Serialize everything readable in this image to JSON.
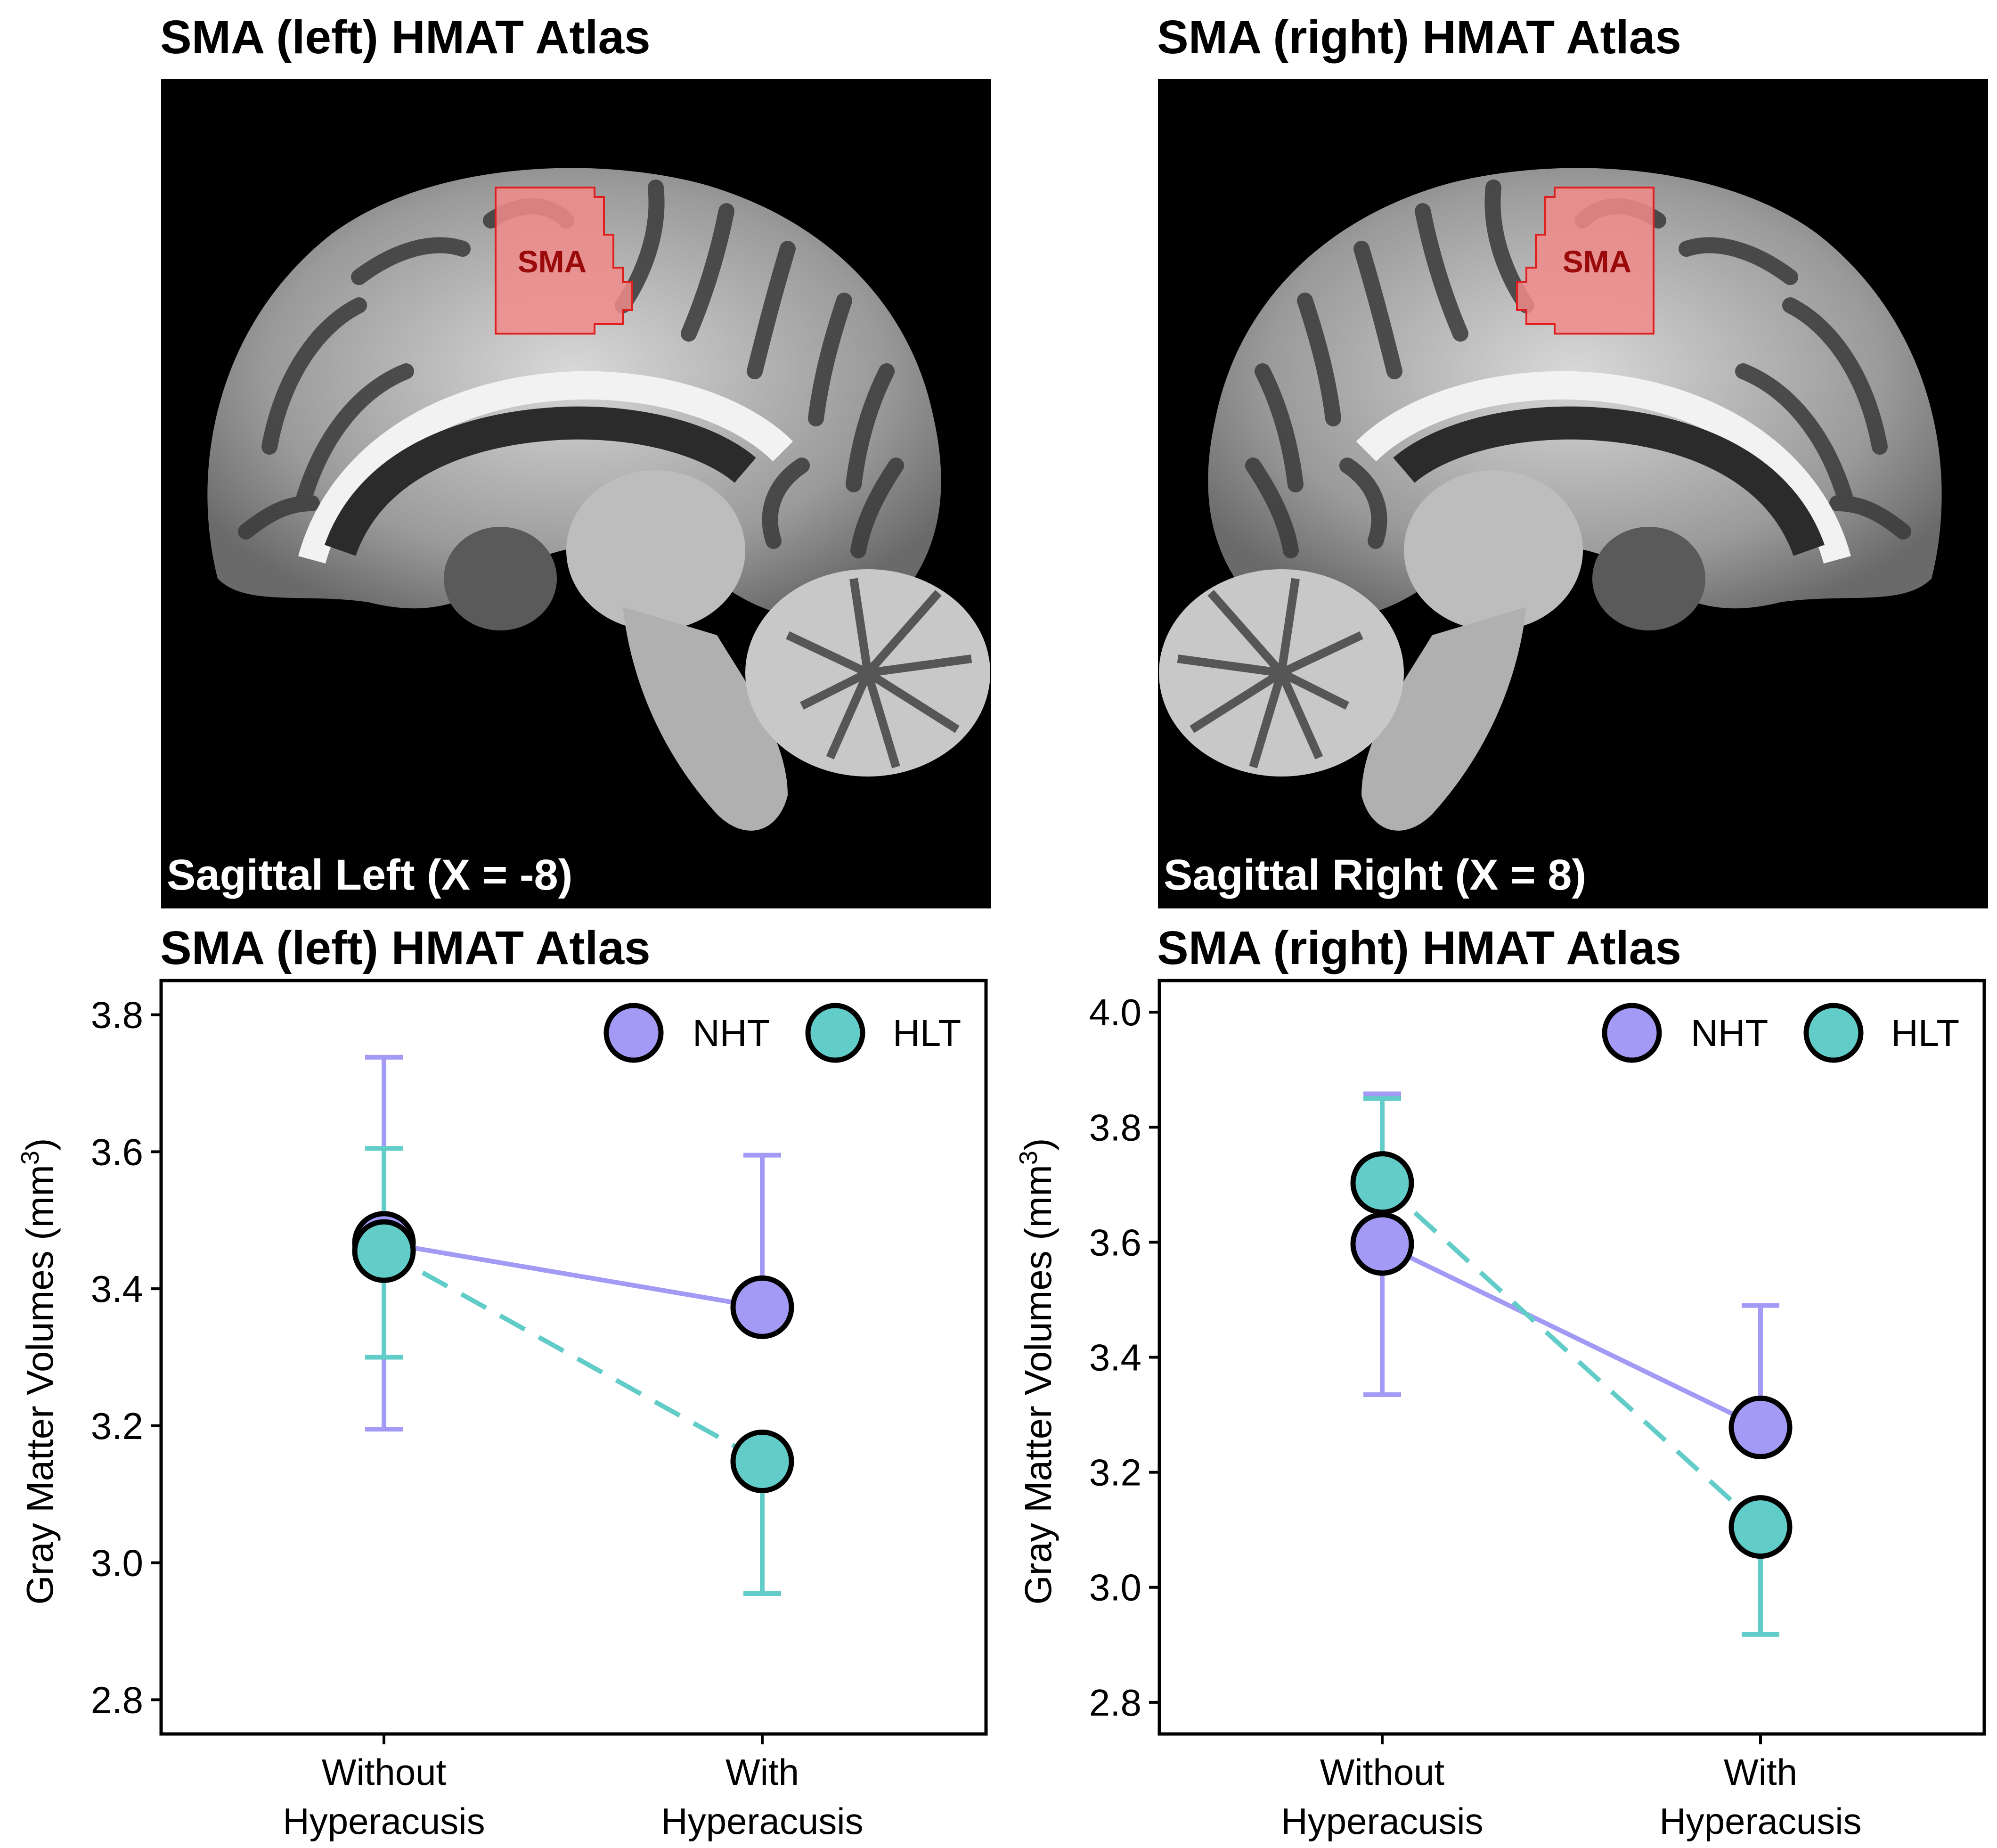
{
  "colors": {
    "nht": "#a29af5",
    "hlt": "#62cdc8",
    "roi_fill": "#f08b8b",
    "roi_edge": "#e02020",
    "roi_label": "#9a0a0a"
  },
  "brains": [
    {
      "title": "SMA (left) HMAT Atlas",
      "caption": "Sagittal Left (X = -8)",
      "roi_label": "SMA"
    },
    {
      "title": "SMA (right) HMAT Atlas",
      "caption": "Sagittal Right (X = 8)",
      "roi_label": "SMA"
    }
  ],
  "chart_data": [
    {
      "type": "line",
      "title": "SMA (left) HMAT Atlas",
      "ylabel": "Gray Matter Volumes (mm",
      "ylabel_sup": "3",
      "ylabel_close": ")",
      "categories": [
        [
          "Without",
          "Hyperacusis"
        ],
        [
          "With",
          "Hyperacusis"
        ]
      ],
      "ylim": [
        2.75,
        3.85
      ],
      "yticks": [
        2.8,
        3.0,
        3.2,
        3.4,
        3.6,
        3.8
      ],
      "ytick_labels": [
        "2.8",
        "3.0",
        "3.2",
        "3.4",
        "3.6",
        "3.8"
      ],
      "legend_position": "top-right",
      "series": [
        {
          "name": "NHT",
          "style": "solid",
          "values": [
            3.467,
            3.373
          ],
          "err_low": [
            3.195,
            3.373
          ],
          "err_high": [
            3.738,
            3.595
          ]
        },
        {
          "name": "HLT",
          "style": "dashed",
          "values": [
            3.455,
            3.148
          ],
          "err_low": [
            3.3,
            2.955
          ],
          "err_high": [
            3.605,
            3.148
          ]
        }
      ]
    },
    {
      "type": "line",
      "title": "SMA (right) HMAT Atlas",
      "ylabel": "Gray Matter Volumes (mm",
      "ylabel_sup": "3",
      "ylabel_close": ")",
      "categories": [
        [
          "Without",
          "Hyperacusis"
        ],
        [
          "With",
          "Hyperacusis"
        ]
      ],
      "ylim": [
        2.745,
        4.055
      ],
      "yticks": [
        2.8,
        3.0,
        3.2,
        3.4,
        3.6,
        3.8,
        4.0
      ],
      "ytick_labels": [
        "2.8",
        "3.0",
        "3.2",
        "3.4",
        "3.6",
        "3.8",
        "4.0"
      ],
      "legend_position": "top-right",
      "series": [
        {
          "name": "NHT",
          "style": "solid",
          "values": [
            3.597,
            3.278
          ],
          "err_low": [
            3.335,
            3.278
          ],
          "err_high": [
            3.858,
            3.49
          ]
        },
        {
          "name": "HLT",
          "style": "dashed",
          "values": [
            3.703,
            3.105
          ],
          "err_low": [
            3.703,
            2.918
          ],
          "err_high": [
            3.85,
            3.105
          ]
        }
      ]
    }
  ]
}
